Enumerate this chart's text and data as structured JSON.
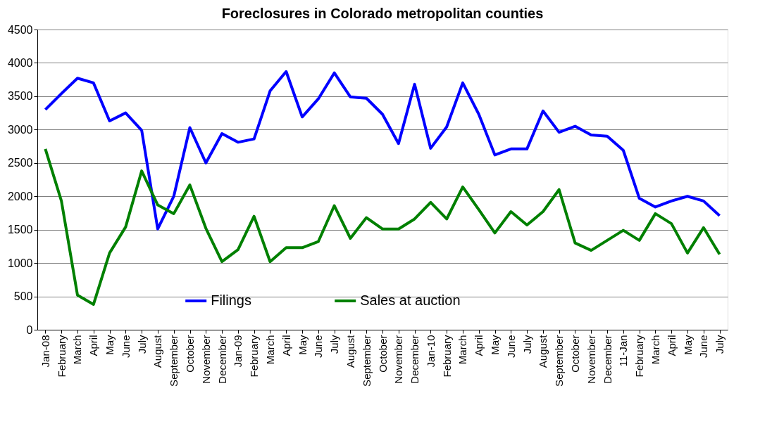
{
  "chart_data": {
    "type": "line",
    "title": "Foreclosures in Colorado metropolitan counties",
    "categories": [
      "Jan-08",
      "February",
      "March",
      "April",
      "May",
      "June",
      "July",
      "August",
      "September",
      "October",
      "November",
      "December",
      "Jan-09",
      "February",
      "March",
      "April",
      "May",
      "June",
      "July",
      "August",
      "September",
      "October",
      "November",
      "December",
      "Jan-10",
      "February",
      "March",
      "April",
      "May",
      "June",
      "July",
      "August",
      "September",
      "October",
      "November",
      "December",
      "11-Jan",
      "February",
      "March",
      "April",
      "May",
      "June",
      "July"
    ],
    "series": [
      {
        "name": "Filings",
        "color": "#0000ff",
        "values": [
          3300,
          3540,
          3770,
          3700,
          3130,
          3250,
          2990,
          1510,
          2000,
          3030,
          2500,
          2940,
          2810,
          2860,
          3580,
          3870,
          3190,
          3460,
          3850,
          3490,
          3470,
          3230,
          2790,
          3680,
          2720,
          3040,
          3700,
          3230,
          2620,
          2710,
          2710,
          3280,
          2960,
          3050,
          2920,
          2900,
          2690,
          1970,
          1840,
          1930,
          2000,
          1930,
          1710
        ]
      },
      {
        "name": "Sales at auction",
        "color": "#008000",
        "values": [
          2710,
          1930,
          520,
          380,
          1150,
          1540,
          2380,
          1870,
          1740,
          2170,
          1520,
          1020,
          1200,
          1700,
          1020,
          1230,
          1230,
          1320,
          1860,
          1370,
          1680,
          1510,
          1510,
          1660,
          1910,
          1660,
          2140,
          1800,
          1450,
          1770,
          1570,
          1770,
          2100,
          1300,
          1190,
          1340,
          1490,
          1340,
          1740,
          1590,
          1150,
          1530,
          1130
        ]
      }
    ],
    "ylim": [
      0,
      4500
    ],
    "yticks": [
      0,
      500,
      1000,
      1500,
      2000,
      2500,
      3000,
      3500,
      4000,
      4500
    ],
    "grid": "y",
    "legend": "bottom",
    "marker": "none",
    "line_style": "solid"
  }
}
